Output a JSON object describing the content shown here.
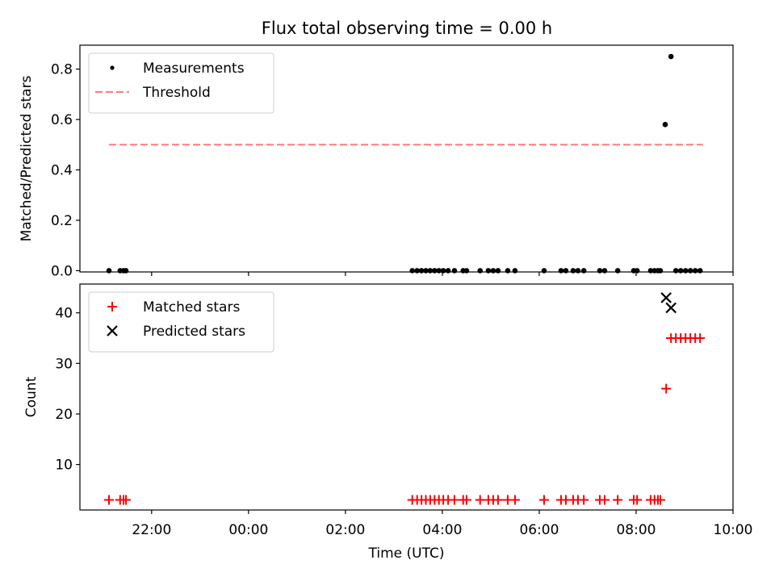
{
  "chart_data": {
    "title": "Flux total observing time = 0.00 h",
    "x_axis": {
      "label": "Time (UTC)",
      "unit": "hours relative to 00:00 UTC (negative = previous evening)",
      "range": [
        -3.48,
        10.0
      ],
      "ticks": [
        {
          "value": -2,
          "label": "22:00"
        },
        {
          "value": 0,
          "label": "00:00"
        },
        {
          "value": 2,
          "label": "02:00"
        },
        {
          "value": 4,
          "label": "04:00"
        },
        {
          "value": 6,
          "label": "06:00"
        },
        {
          "value": 8,
          "label": "08:00"
        },
        {
          "value": 10,
          "label": "10:00"
        }
      ]
    },
    "panels": [
      {
        "type": "scatter",
        "ylabel": "Matched/Predicted stars",
        "ylim": [
          -0.005,
          0.895
        ],
        "yticks": [
          {
            "value": 0.0,
            "label": "0.0"
          },
          {
            "value": 0.2,
            "label": "0.2"
          },
          {
            "value": 0.4,
            "label": "0.4"
          },
          {
            "value": 0.6,
            "label": "0.6"
          },
          {
            "value": 0.8,
            "label": "0.8"
          }
        ],
        "legend": {
          "position": "upper-left"
        },
        "series": [
          {
            "name": "Measurements",
            "marker": "dot",
            "color": "#000000",
            "points": [
              [
                -2.88,
                0
              ],
              [
                -2.65,
                0
              ],
              [
                -2.58,
                0
              ],
              [
                -2.53,
                0
              ],
              [
                3.38,
                0
              ],
              [
                3.48,
                0
              ],
              [
                3.57,
                0
              ],
              [
                3.66,
                0
              ],
              [
                3.75,
                0
              ],
              [
                3.84,
                0
              ],
              [
                3.93,
                0
              ],
              [
                4.02,
                0
              ],
              [
                4.12,
                0
              ],
              [
                4.25,
                0
              ],
              [
                4.43,
                0
              ],
              [
                4.5,
                0
              ],
              [
                4.78,
                0
              ],
              [
                4.95,
                0
              ],
              [
                5.05,
                0
              ],
              [
                5.15,
                0
              ],
              [
                5.35,
                0
              ],
              [
                5.5,
                0
              ],
              [
                6.1,
                0
              ],
              [
                6.45,
                0
              ],
              [
                6.55,
                0
              ],
              [
                6.7,
                0
              ],
              [
                6.8,
                0
              ],
              [
                6.92,
                0
              ],
              [
                7.25,
                0
              ],
              [
                7.35,
                0
              ],
              [
                7.62,
                0
              ],
              [
                7.95,
                0
              ],
              [
                8.02,
                0
              ],
              [
                8.3,
                0
              ],
              [
                8.38,
                0
              ],
              [
                8.45,
                0
              ],
              [
                8.5,
                0
              ],
              [
                8.6,
                0.58
              ],
              [
                8.72,
                0.85
              ],
              [
                8.82,
                0
              ],
              [
                8.92,
                0
              ],
              [
                9.02,
                0
              ],
              [
                9.12,
                0
              ],
              [
                9.22,
                0
              ],
              [
                9.32,
                0
              ]
            ]
          },
          {
            "name": "Threshold",
            "line_style": "dashed",
            "color": "#ff7f7f",
            "points": [
              [
                -2.88,
                0.5
              ],
              [
                9.38,
                0.5
              ]
            ]
          }
        ]
      },
      {
        "type": "scatter",
        "ylabel": "Count",
        "ylim": [
          1.0,
          45.7
        ],
        "yticks": [
          {
            "value": 10,
            "label": "10"
          },
          {
            "value": 20,
            "label": "20"
          },
          {
            "value": 30,
            "label": "30"
          },
          {
            "value": 40,
            "label": "40"
          }
        ],
        "legend": {
          "position": "upper-left"
        },
        "series": [
          {
            "name": "Matched stars",
            "marker": "plus",
            "color": "#ff0000",
            "points": [
              [
                -2.88,
                3
              ],
              [
                -2.65,
                3
              ],
              [
                -2.58,
                3
              ],
              [
                -2.53,
                3
              ],
              [
                3.38,
                3
              ],
              [
                3.48,
                3
              ],
              [
                3.57,
                3
              ],
              [
                3.66,
                3
              ],
              [
                3.75,
                3
              ],
              [
                3.84,
                3
              ],
              [
                3.93,
                3
              ],
              [
                4.02,
                3
              ],
              [
                4.12,
                3
              ],
              [
                4.25,
                3
              ],
              [
                4.43,
                3
              ],
              [
                4.5,
                3
              ],
              [
                4.78,
                3
              ],
              [
                4.95,
                3
              ],
              [
                5.05,
                3
              ],
              [
                5.15,
                3
              ],
              [
                5.35,
                3
              ],
              [
                5.5,
                3
              ],
              [
                6.1,
                3
              ],
              [
                6.45,
                3
              ],
              [
                6.55,
                3
              ],
              [
                6.7,
                3
              ],
              [
                6.8,
                3
              ],
              [
                6.92,
                3
              ],
              [
                7.25,
                3
              ],
              [
                7.35,
                3
              ],
              [
                7.62,
                3
              ],
              [
                7.95,
                3
              ],
              [
                8.02,
                3
              ],
              [
                8.3,
                3
              ],
              [
                8.38,
                3
              ],
              [
                8.45,
                3
              ],
              [
                8.5,
                3
              ],
              [
                8.62,
                25
              ],
              [
                8.72,
                35
              ],
              [
                8.82,
                35
              ],
              [
                8.92,
                35
              ],
              [
                9.02,
                35
              ],
              [
                9.12,
                35
              ],
              [
                9.22,
                35
              ],
              [
                9.32,
                35
              ]
            ]
          },
          {
            "name": "Predicted stars",
            "marker": "x",
            "color": "#000000",
            "points": [
              [
                8.62,
                43
              ],
              [
                8.72,
                41
              ]
            ]
          }
        ]
      }
    ]
  }
}
